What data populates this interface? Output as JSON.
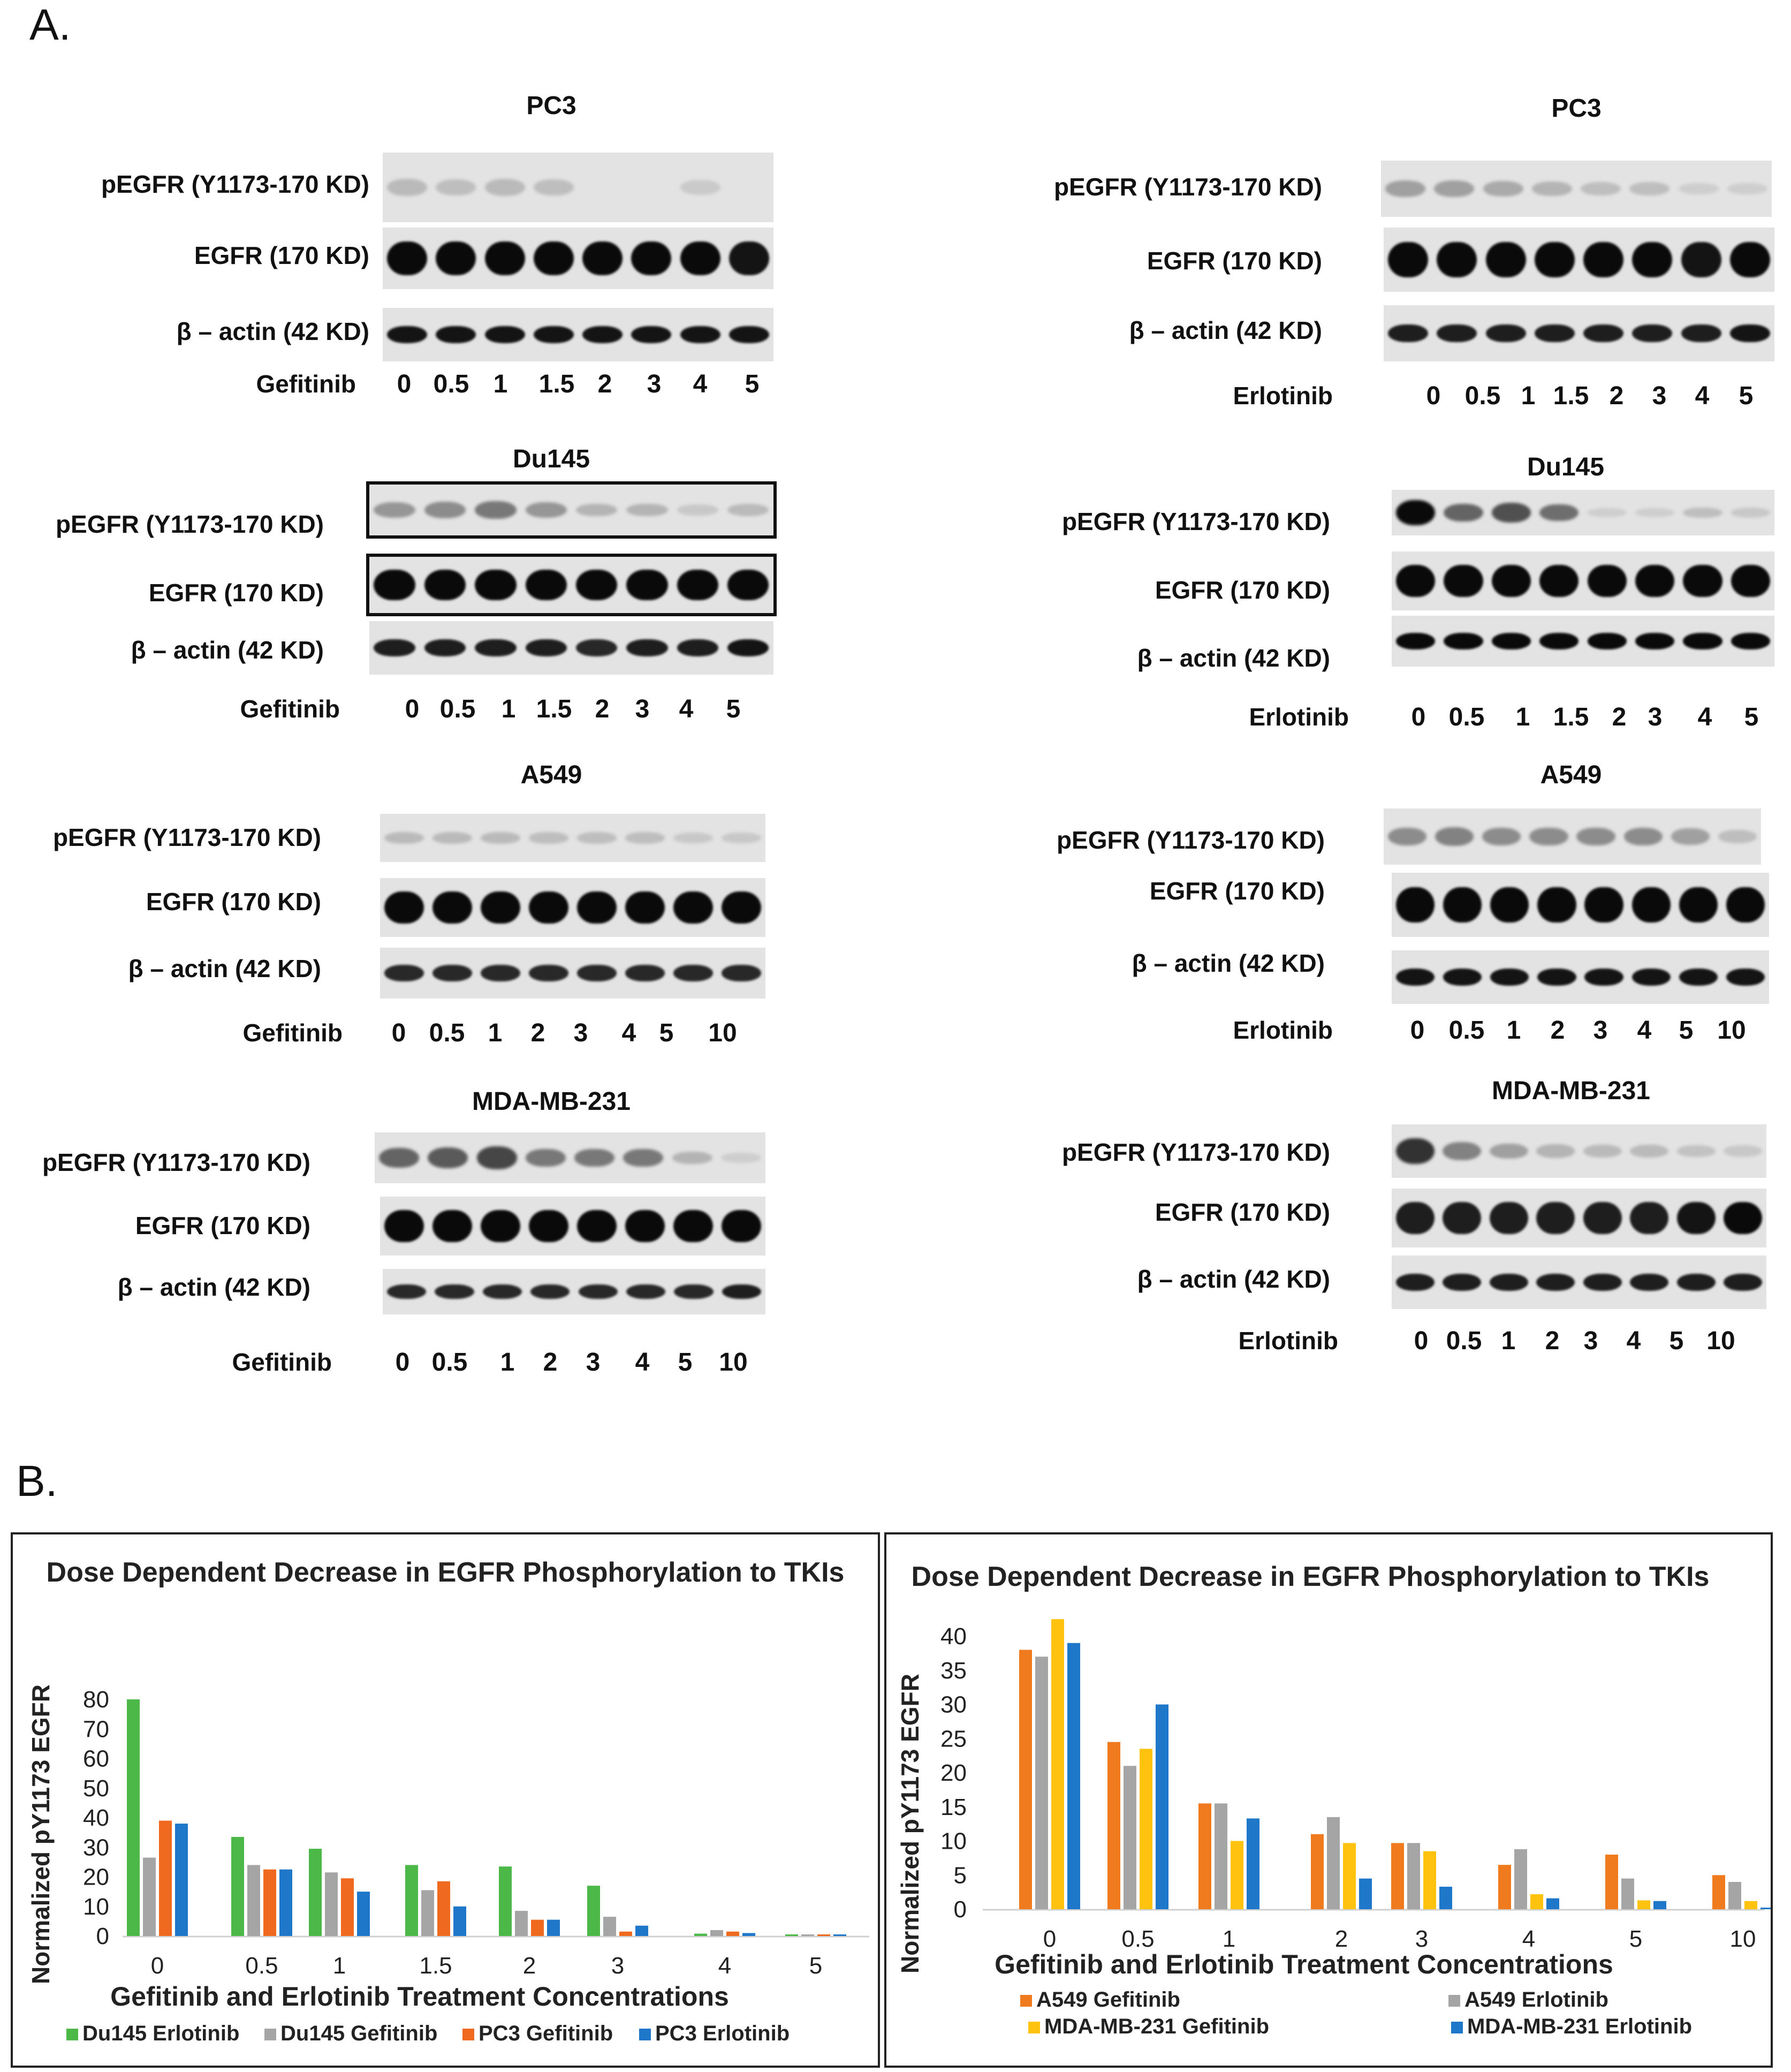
{
  "figure": {
    "panel_a_label": "A.",
    "panel_b_label": "B."
  },
  "blots": [
    {
      "title": "PC3",
      "drug": "Gefitinib",
      "pegfr_label": "pEGFR (Y1173-170 KD)",
      "egfr_label": "EGFR (170 KD)",
      "actin_label": "β – actin (42 KD)",
      "concentrations": [
        "0",
        "0.5",
        "1",
        "1.5",
        "2",
        "3",
        "4",
        "5"
      ]
    },
    {
      "title": "PC3",
      "drug": "Erlotinib",
      "pegfr_label": "pEGFR (Y1173-170 KD)",
      "egfr_label": "EGFR (170 KD)",
      "actin_label": "β – actin (42 KD)",
      "concentrations": [
        "0",
        "0.5",
        "1",
        "1.5",
        "2",
        "3",
        "4",
        "5"
      ]
    },
    {
      "title": "Du145",
      "drug": "Gefitinib",
      "pegfr_label": "pEGFR (Y1173-170 KD)",
      "egfr_label": "EGFR (170 KD)",
      "actin_label": "β – actin (42 KD)",
      "concentrations": [
        "0",
        "0.5",
        "1",
        "1.5",
        "2",
        "3",
        "4",
        "5"
      ]
    },
    {
      "title": "Du145",
      "drug": "Erlotinib",
      "pegfr_label": "pEGFR (Y1173-170 KD)",
      "egfr_label": "EGFR (170 KD)",
      "actin_label": "β – actin (42 KD)",
      "concentrations": [
        "0",
        "0.5",
        "1",
        "1.5",
        "2",
        "3",
        "4",
        "5"
      ]
    },
    {
      "title": "A549",
      "drug": "Gefitinib",
      "pegfr_label": "pEGFR (Y1173-170 KD)",
      "egfr_label": "EGFR (170 KD)",
      "actin_label": "β – actin (42 KD)",
      "concentrations": [
        "0",
        "0.5",
        "1",
        "2",
        "3",
        "4",
        "5",
        "10"
      ]
    },
    {
      "title": "A549",
      "drug": "Erlotinib",
      "pegfr_label": "pEGFR (Y1173-170 KD)",
      "egfr_label": "EGFR (170 KD)",
      "actin_label": "β – actin (42 KD)",
      "concentrations": [
        "0",
        "0.5",
        "1",
        "2",
        "3",
        "4",
        "5",
        "10"
      ]
    },
    {
      "title": "MDA-MB-231",
      "drug": "Gefitinib",
      "pegfr_label": "pEGFR (Y1173-170 KD)",
      "egfr_label": "EGFR (170 KD)",
      "actin_label": "β – actin (42 KD)",
      "concentrations": [
        "0",
        "0.5",
        "1",
        "2",
        "3",
        "4",
        "5",
        "10"
      ]
    },
    {
      "title": "MDA-MB-231",
      "drug": "Erlotinib",
      "pegfr_label": "pEGFR (Y1173-170 KD)",
      "egfr_label": "EGFR (170 KD)",
      "actin_label": "β – actin (42 KD)",
      "concentrations": [
        "0",
        "0.5",
        "1",
        "2",
        "3",
        "4",
        "5",
        "10"
      ]
    }
  ],
  "chart_data": [
    {
      "type": "bar",
      "title": "Dose Dependent Decrease in EGFR Phosphorylation  to TKIs",
      "xlabel": "Gefitinib and Erlotinib Treatment Concentrations",
      "ylabel": "Normalized pY1173 EGFR",
      "ylim": [
        0,
        80
      ],
      "yticks": [
        0,
        10,
        20,
        30,
        40,
        50,
        60,
        70,
        80
      ],
      "categories": [
        "0",
        "0.5",
        "1",
        "1.5",
        "2",
        "3",
        "4",
        "5"
      ],
      "series": [
        {
          "name": "Du145 Erlotinib",
          "color": "#4bb848",
          "values": [
            80,
            33.5,
            29.5,
            24,
            23.5,
            17,
            0.8,
            0.3
          ]
        },
        {
          "name": "Du145 Gefitinib",
          "color": "#a5a5a5",
          "values": [
            26.5,
            24,
            21.5,
            15.5,
            8.5,
            6.5,
            2,
            0.3
          ]
        },
        {
          "name": "PC3 Gefitinib",
          "color": "#ef6a1e",
          "values": [
            39,
            22.5,
            19.5,
            18.5,
            5.5,
            1.5,
            1.5,
            0.3
          ]
        },
        {
          "name": "PC3 Erlotinib",
          "color": "#1f77c9",
          "values": [
            38,
            22.5,
            15,
            10,
            5.5,
            3.5,
            1,
            0.3
          ]
        }
      ],
      "legend_position": "bottom"
    },
    {
      "type": "bar",
      "title": "Dose Dependent Decrease in EGFR Phosphorylation  to TKIs",
      "xlabel": "Gefitinib and Erlotinib Treatment Concentrations",
      "ylabel": "Normalized pY1173 EGFR",
      "ylim": [
        0,
        40
      ],
      "yticks": [
        0,
        5,
        10,
        15,
        20,
        25,
        30,
        35,
        40
      ],
      "categories": [
        "0",
        "0.5",
        "1",
        "2",
        "3",
        "4",
        "5",
        "10"
      ],
      "series": [
        {
          "name": "A549 Gefitinib",
          "color": "#ef7b1e",
          "values": [
            38,
            24.5,
            15.5,
            11,
            9.7,
            6.5,
            8,
            5
          ]
        },
        {
          "name": "A549 Erlotinib",
          "color": "#a5a5a5",
          "values": [
            37,
            21,
            15.5,
            13.5,
            9.7,
            8.8,
            4.5,
            4
          ]
        },
        {
          "name": "MDA-MB-231 Gefitinib",
          "color": "#ffc20e",
          "values": [
            42.5,
            23.5,
            10,
            9.7,
            8.5,
            2.2,
            1.3,
            1.2
          ]
        },
        {
          "name": "MDA-MB-231 Erlotinib",
          "color": "#1f77c9",
          "values": [
            39,
            30,
            13.3,
            4.5,
            3.3,
            1.6,
            1.2,
            0
          ]
        }
      ],
      "legend_position": "bottom"
    }
  ]
}
